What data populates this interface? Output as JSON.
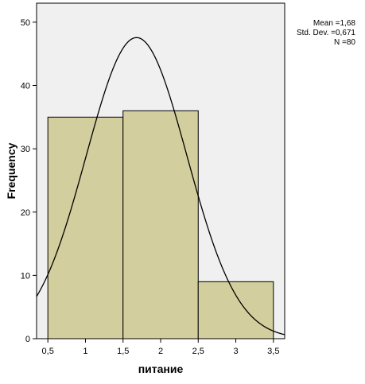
{
  "chart_data": {
    "type": "bar",
    "subtype": "histogram-with-normal-curve",
    "xlabel": "питание",
    "ylabel": "Frequency",
    "xlim": [
      0.35,
      3.65
    ],
    "ylim": [
      0,
      53
    ],
    "x_ticks": [
      0.5,
      1,
      1.5,
      2,
      2.5,
      3,
      3.5
    ],
    "x_tick_labels": [
      "0,5",
      "1",
      "1,5",
      "2",
      "2,5",
      "3",
      "3,5"
    ],
    "y_ticks": [
      0,
      10,
      20,
      30,
      40,
      50
    ],
    "y_tick_labels": [
      "0",
      "10",
      "20",
      "30",
      "40",
      "50"
    ],
    "bins": [
      {
        "start": 0.5,
        "end": 1.5,
        "value": 35
      },
      {
        "start": 1.5,
        "end": 2.5,
        "value": 36
      },
      {
        "start": 2.5,
        "end": 3.5,
        "value": 9
      }
    ],
    "normal_curve": {
      "mean": 1.68,
      "sd": 0.671,
      "n": 80,
      "bin_width": 1
    },
    "grid": false,
    "plot_background": "#f0f0f0",
    "bar_fill": "#d3ce9d",
    "bar_stroke": "#000000",
    "curve_color": "#000000"
  },
  "stats": {
    "mean": "Mean =1,68",
    "std_dev": "Std. Dev. =0,671",
    "n": "N =80"
  }
}
